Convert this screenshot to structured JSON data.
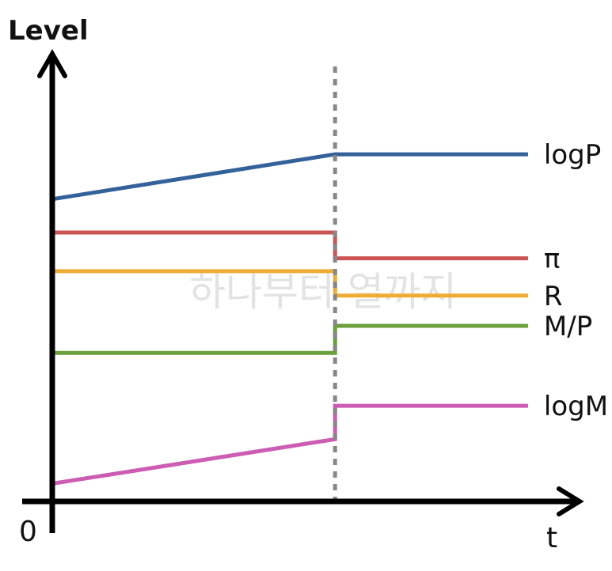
{
  "chart_data": {
    "type": "line",
    "ylabel": "Level",
    "xlabel": "t",
    "origin_label": "0",
    "x_range": [
      0,
      10
    ],
    "y_range": [
      0,
      10
    ],
    "grid": false,
    "legend": "none",
    "event_x": 5.38,
    "series": [
      {
        "name": "logP",
        "color": "#33619a",
        "points": [
          [
            0,
            6.8
          ],
          [
            5.38,
            7.81
          ],
          [
            9.05,
            7.81
          ]
        ]
      },
      {
        "name": "π",
        "color": "#cb5454",
        "points": [
          [
            0,
            6.05
          ],
          [
            5.38,
            6.05
          ],
          [
            5.38,
            5.47
          ],
          [
            9.05,
            5.47
          ]
        ]
      },
      {
        "name": "R",
        "color": "#eeac33",
        "points": [
          [
            0,
            5.18
          ],
          [
            5.38,
            5.18
          ],
          [
            5.38,
            4.63
          ],
          [
            9.05,
            4.63
          ]
        ]
      },
      {
        "name": "M/P",
        "color": "#6a9f3a",
        "points": [
          [
            0,
            3.34
          ],
          [
            5.38,
            3.34
          ],
          [
            5.38,
            3.95
          ],
          [
            9.05,
            3.95
          ]
        ]
      },
      {
        "name": "logM",
        "color": "#cd5cb3",
        "points": [
          [
            0,
            0.4
          ],
          [
            5.38,
            1.4
          ],
          [
            5.38,
            2.15
          ],
          [
            9.05,
            2.15
          ]
        ]
      }
    ],
    "watermark": "하나부터 열까지"
  }
}
